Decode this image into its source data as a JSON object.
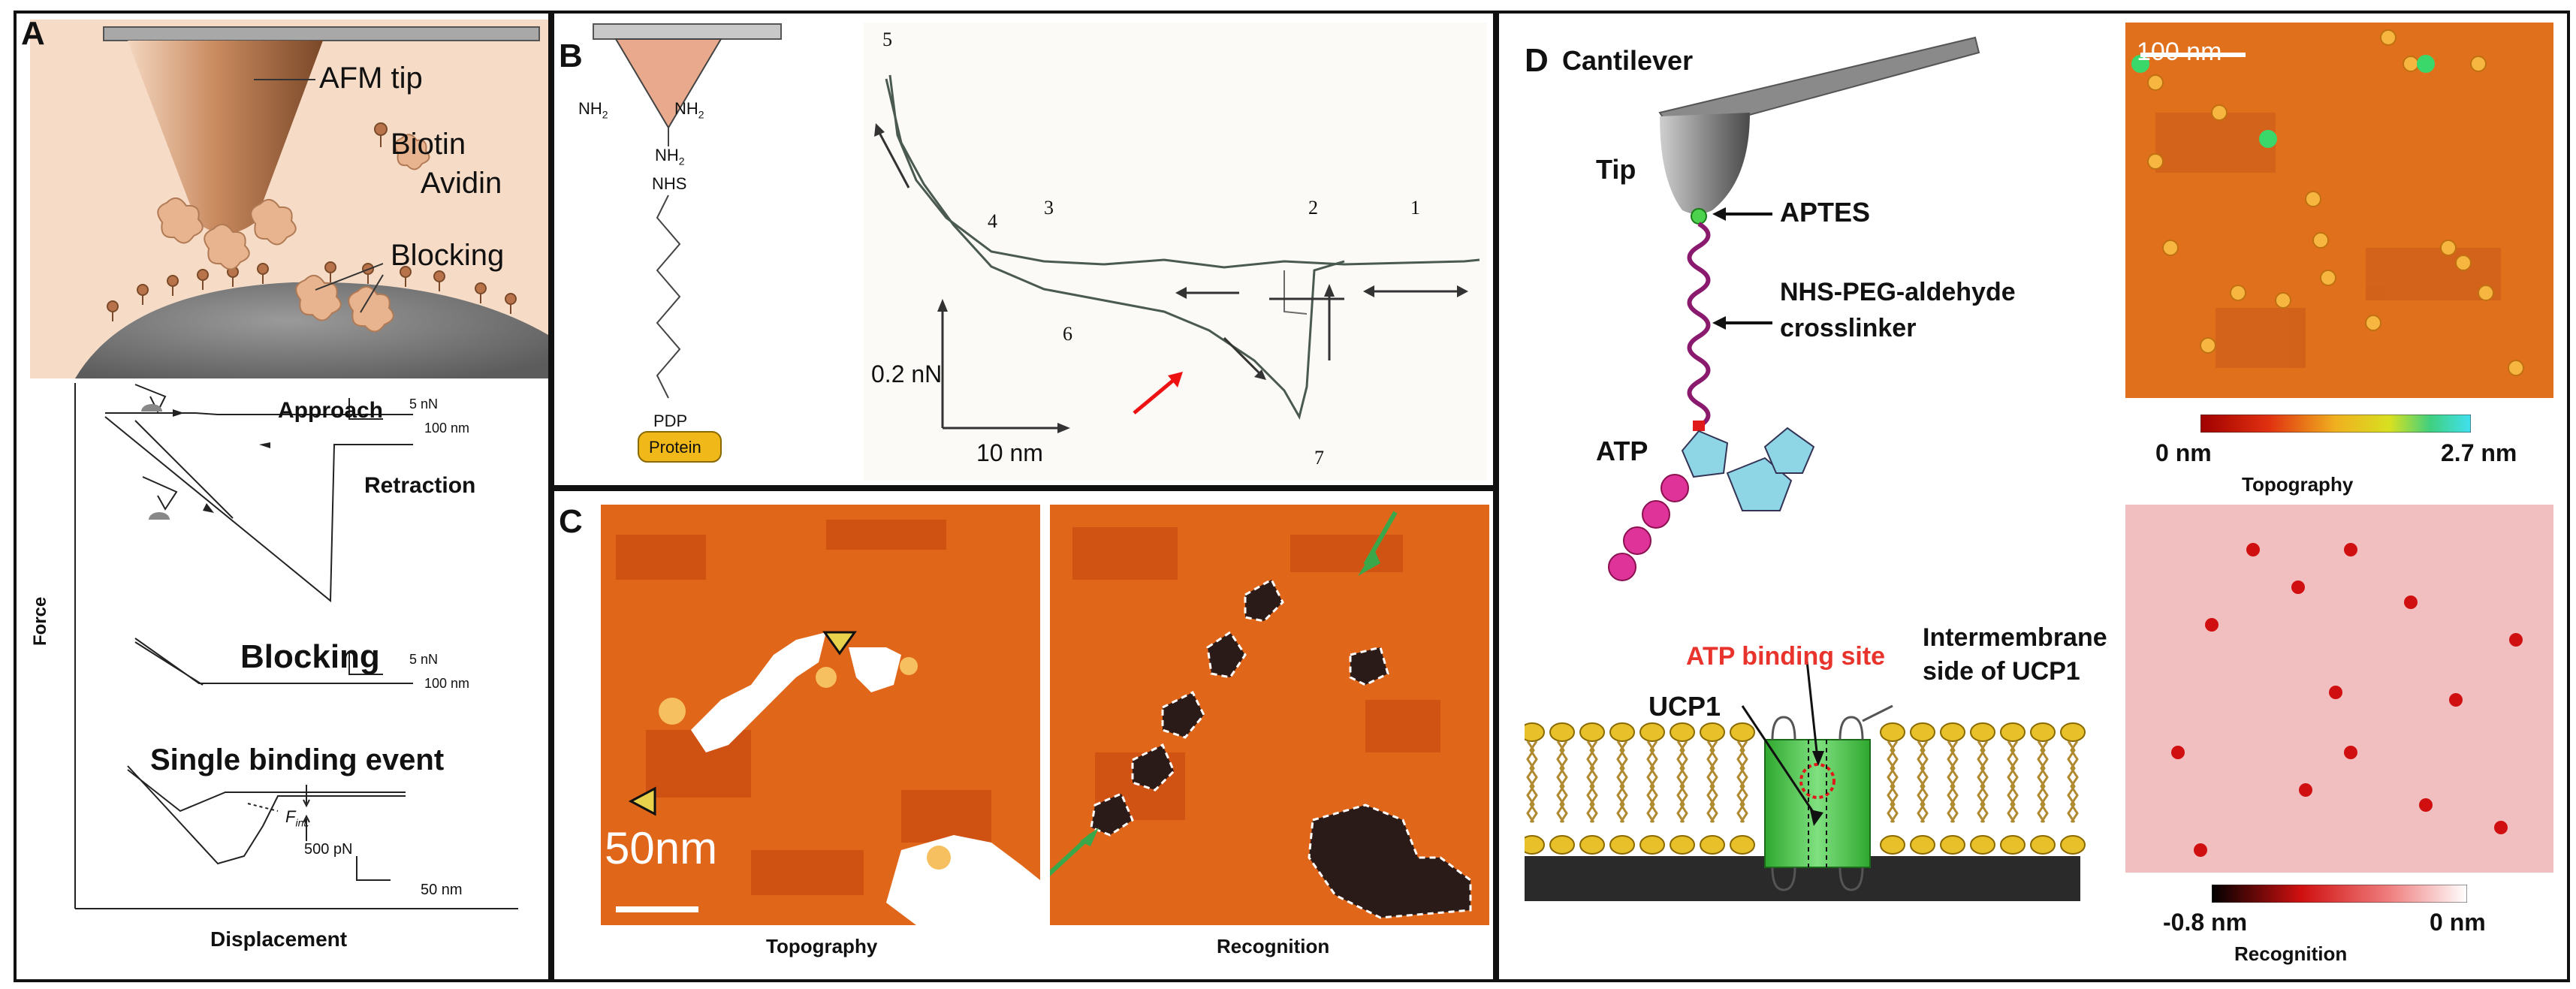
{
  "panel_a": {
    "letter": "A",
    "afm_tip": "AFM tip",
    "biotin": "Biotin",
    "avidin": "Avidin",
    "blocking_top": "Blocking",
    "approach": "Approach",
    "retraction": "Retraction",
    "blocking": "Blocking",
    "single_binding": "Single binding event",
    "scale_5nN_1": "5 nN",
    "scale_100nm_1": "100 nm",
    "scale_5nN_2": "5 nN",
    "scale_100nm_2": "100 nm",
    "scale_500pN": "500 pN",
    "scale_50nm": "50 nm",
    "y_axis": "Force",
    "x_axis": "Displacement",
    "f_label": "F",
    "f_sub": "int."
  },
  "panel_b": {
    "letter": "B",
    "nh2_left": "NH",
    "nh2_right": "NH",
    "nh2_center": "NH",
    "nhs": "NHS",
    "pdp": "PDP",
    "protein": "Protein",
    "n1": "1",
    "n2": "2",
    "n3": "3",
    "n4": "4",
    "n5": "5",
    "n6": "6",
    "n7": "7",
    "force_scale": "0.2 nN",
    "length_scale": "10 nm"
  },
  "panel_c": {
    "letter": "C",
    "scale": "50nm",
    "topography": "Topography",
    "recognition": "Recognition"
  },
  "panel_d": {
    "letter": "D",
    "cantilever": "Cantilever",
    "tip": "Tip",
    "aptes": "APTES",
    "crosslinker_1": "NHS-PEG-aldehyde",
    "crosslinker_2": "crosslinker",
    "atp": "ATP",
    "intermembrane_1": "Intermembrane",
    "intermembrane_2": "side of UCP1",
    "atp_site": "ATP binding site",
    "ucp1": "UCP1",
    "scale_100nm": "100 nm",
    "topo_min": "0 nm",
    "topo_max": "2.7 nm",
    "topo_title": "Topography",
    "rec_min": "-0.8 nm",
    "rec_max": "0 nm",
    "rec_title": "Recognition"
  },
  "colors": {
    "tip_copper": "#c98a5f",
    "panel_a_bg": "#f6dcc6",
    "topo_orange": "#e2701a",
    "recog_pink": "#f2bfc0",
    "lipid_yellow": "#e8c12a",
    "ucp_green": "#4cc94c",
    "linker_purple": "#8a1a6e",
    "atp_pink": "#e0339a",
    "atp_cyan": "#8ed6e6"
  }
}
